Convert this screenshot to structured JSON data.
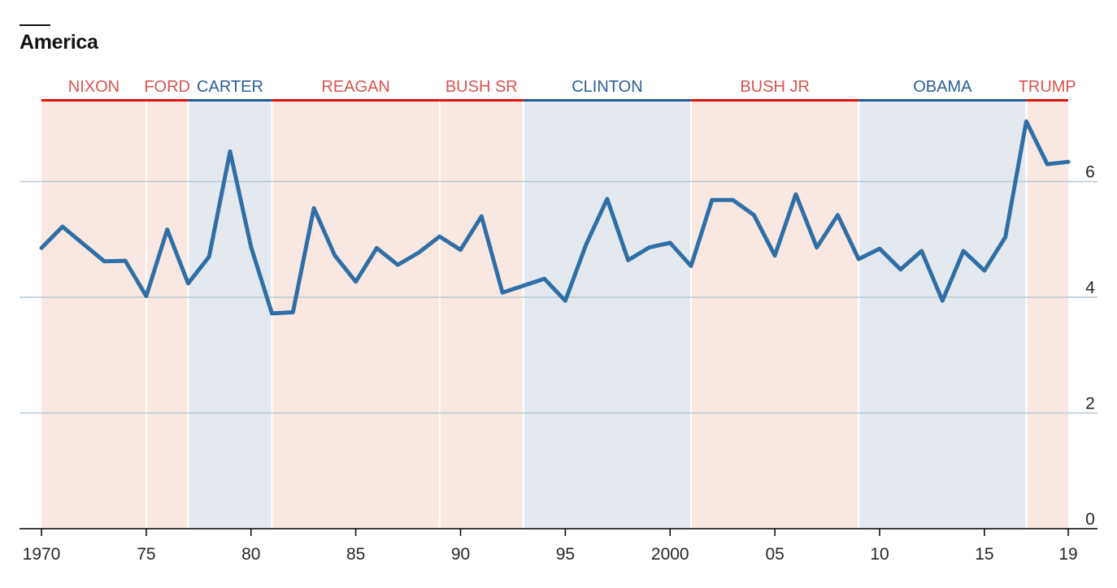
{
  "title": "America",
  "colors": {
    "republican": "#e3120b",
    "republican_label": "#d9534f",
    "republican_band": "#f8e8e1",
    "democrat": "#1f5c99",
    "democrat_label": "#2a6099",
    "democrat_band": "#e4e9f0",
    "line": "#2f6fa6",
    "grid": "#b7c7d3",
    "axis": "#000000"
  },
  "chart_data": {
    "type": "line",
    "title": "America",
    "xlabel": "",
    "ylabel": "",
    "xlim": [
      1970,
      2019
    ],
    "ylim": [
      0,
      7.5
    ],
    "y_ticks": [
      0,
      2,
      4,
      6
    ],
    "y_tick_labels": [
      "0",
      "2",
      "4",
      "6"
    ],
    "x_ticks": [
      1970,
      1975,
      1980,
      1985,
      1990,
      1995,
      2000,
      2005,
      2010,
      2015,
      2019
    ],
    "x_tick_labels": [
      "1970",
      "75",
      "80",
      "85",
      "90",
      "95",
      "2000",
      "05",
      "10",
      "15",
      "19"
    ],
    "grid": "horizontal",
    "series": [
      {
        "x": [
          1970,
          1971,
          1972,
          1973,
          1974,
          1975,
          1976,
          1977,
          1978,
          1979,
          1980,
          1981,
          1982,
          1983,
          1984,
          1985,
          1986,
          1987,
          1988,
          1989,
          1990,
          1991,
          1992,
          1993,
          1994,
          1995,
          1996,
          1997,
          1998,
          1999,
          2000,
          2001,
          2002,
          2003,
          2004,
          2005,
          2006,
          2007,
          2008,
          2009,
          2010,
          2011,
          2012,
          2013,
          2014,
          2015,
          2016,
          2017,
          2018,
          2019
        ],
        "values": [
          4.85,
          5.22,
          4.92,
          4.62,
          4.63,
          4.02,
          5.17,
          4.24,
          4.7,
          6.52,
          4.87,
          3.72,
          3.74,
          5.54,
          4.72,
          4.27,
          4.85,
          4.56,
          4.77,
          5.05,
          4.82,
          5.4,
          4.08,
          4.2,
          4.32,
          3.94,
          4.92,
          5.7,
          4.64,
          4.86,
          4.94,
          4.54,
          5.68,
          5.68,
          5.42,
          4.72,
          5.78,
          4.86,
          5.42,
          4.66,
          4.84,
          4.48,
          4.8,
          3.94,
          4.8,
          4.46,
          5.04,
          7.04,
          6.3,
          6.34
        ]
      }
    ],
    "presidencies": [
      {
        "name": "NIXON",
        "party": "R",
        "start": 1970,
        "end": 1975
      },
      {
        "name": "FORD",
        "party": "R",
        "start": 1975,
        "end": 1977
      },
      {
        "name": "CARTER",
        "party": "D",
        "start": 1977,
        "end": 1981
      },
      {
        "name": "REAGAN",
        "party": "R",
        "start": 1981,
        "end": 1989
      },
      {
        "name": "BUSH SR",
        "party": "R",
        "start": 1989,
        "end": 1993
      },
      {
        "name": "CLINTON",
        "party": "D",
        "start": 1993,
        "end": 2001
      },
      {
        "name": "BUSH JR",
        "party": "R",
        "start": 2001,
        "end": 2009
      },
      {
        "name": "OBAMA",
        "party": "D",
        "start": 2009,
        "end": 2017
      },
      {
        "name": "TRUMP",
        "party": "R",
        "start": 2017,
        "end": 2019.5
      }
    ]
  }
}
